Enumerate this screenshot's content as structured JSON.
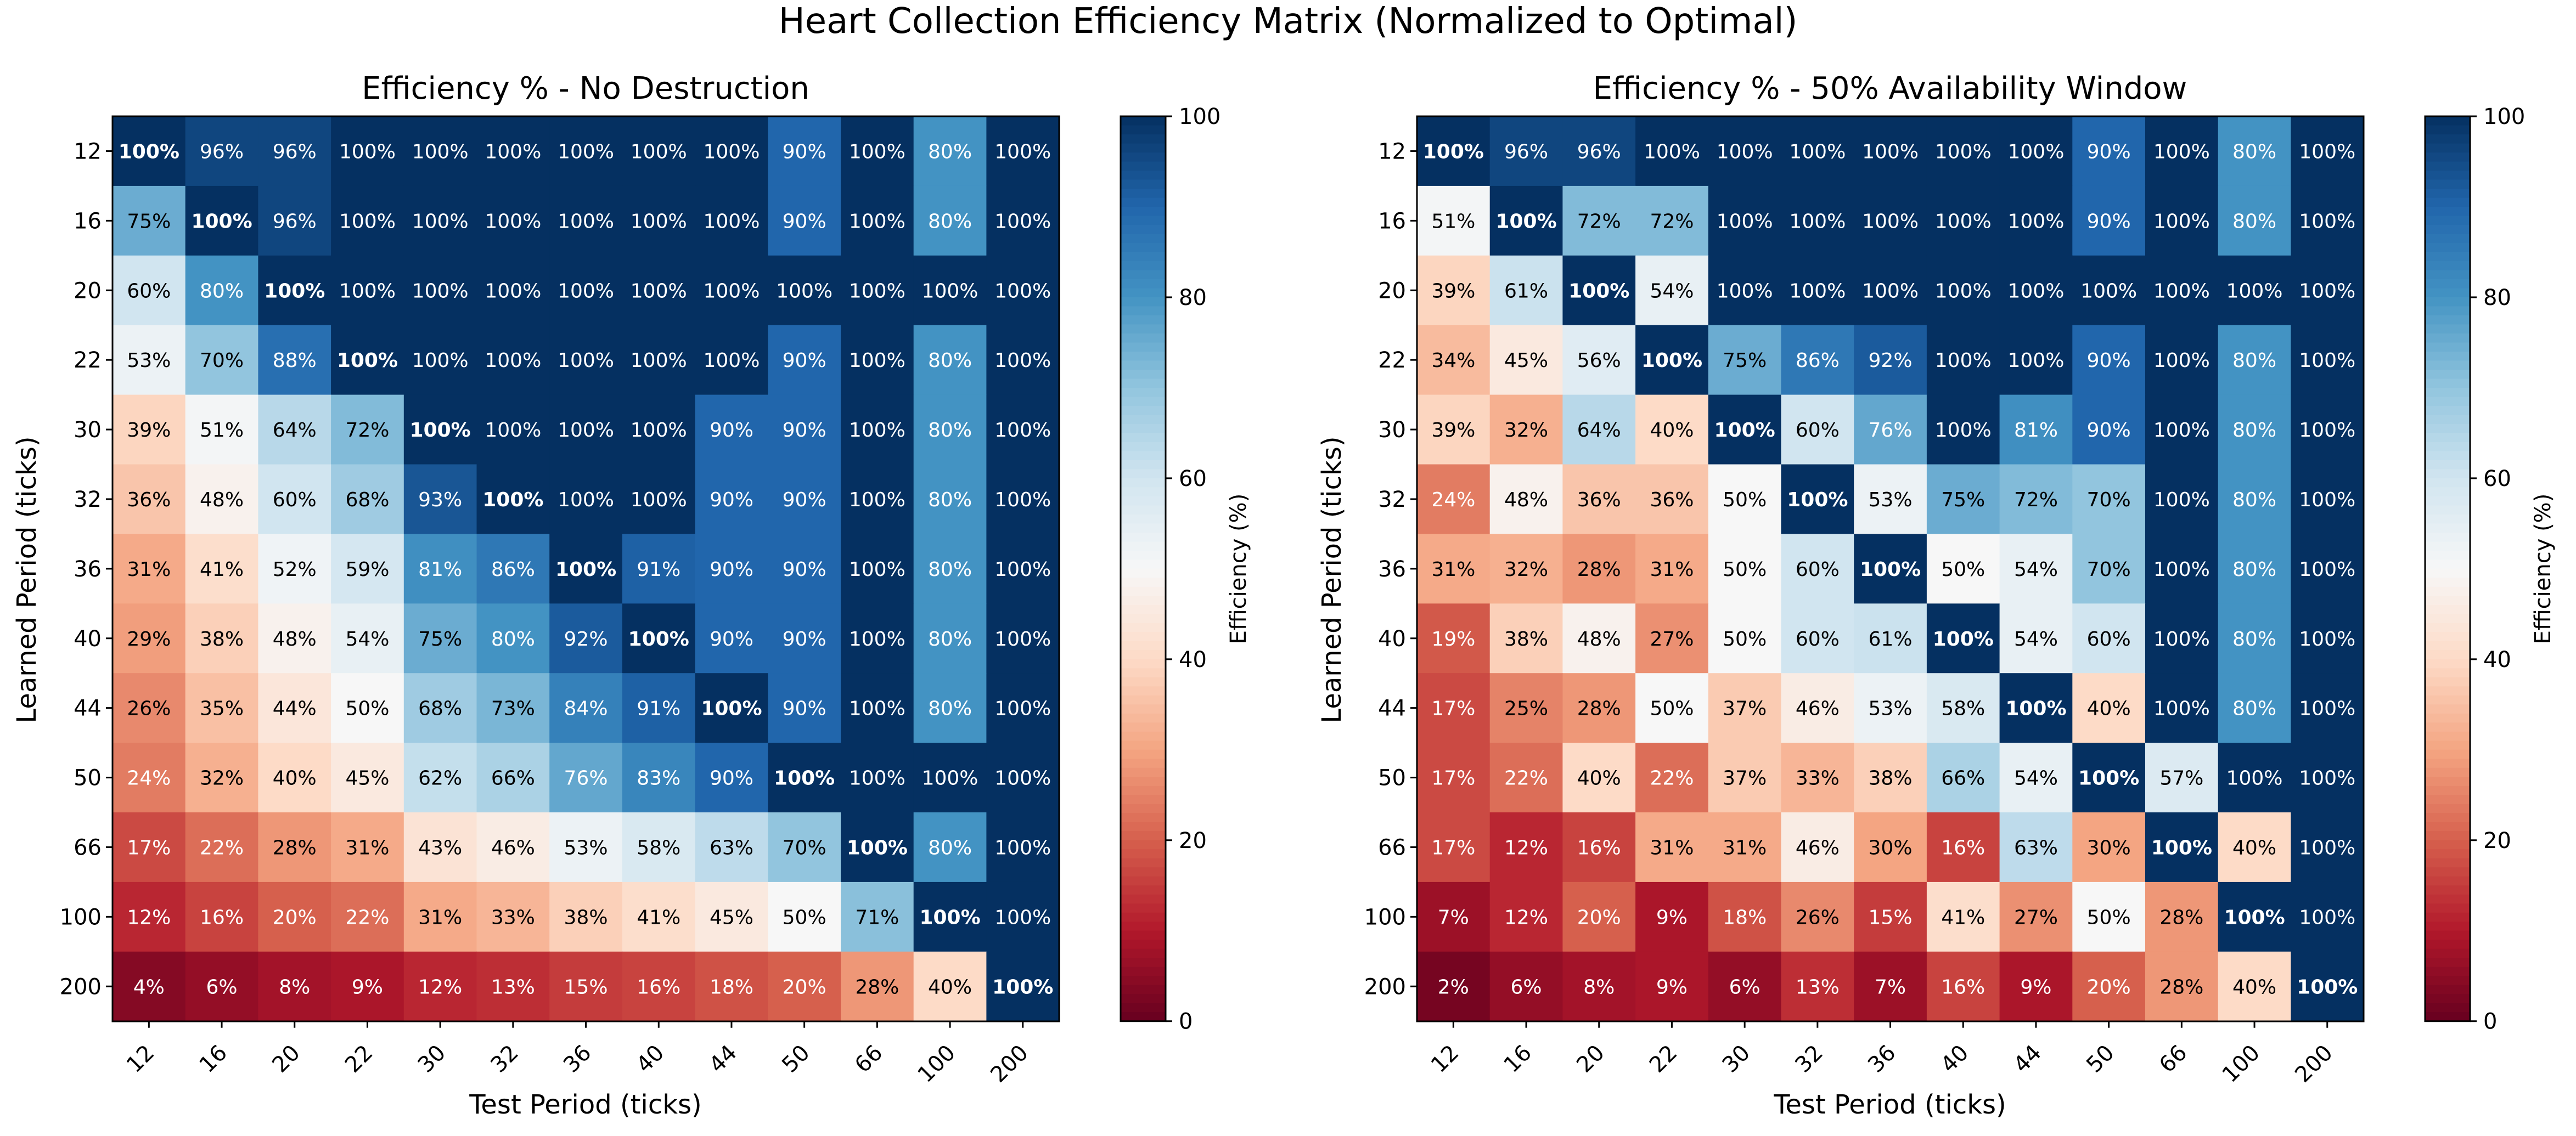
{
  "suptitle": "Heart Collection Efficiency Matrix (Normalized to Optimal)",
  "chart_data": [
    {
      "type": "heatmap",
      "title": "Efficiency % - No Destruction",
      "xlabel": "Test Period (ticks)",
      "ylabel": "Learned Period (ticks)",
      "x_categories": [
        "12",
        "16",
        "20",
        "22",
        "30",
        "32",
        "36",
        "40",
        "44",
        "50",
        "66",
        "100",
        "200"
      ],
      "y_categories": [
        "12",
        "16",
        "20",
        "22",
        "30",
        "32",
        "36",
        "40",
        "44",
        "50",
        "66",
        "100",
        "200"
      ],
      "value_format": "percent",
      "values": [
        [
          100,
          96,
          96,
          100,
          100,
          100,
          100,
          100,
          100,
          90,
          100,
          80,
          100
        ],
        [
          75,
          100,
          96,
          100,
          100,
          100,
          100,
          100,
          100,
          90,
          100,
          80,
          100
        ],
        [
          60,
          80,
          100,
          100,
          100,
          100,
          100,
          100,
          100,
          100,
          100,
          100,
          100
        ],
        [
          53,
          70,
          88,
          100,
          100,
          100,
          100,
          100,
          100,
          90,
          100,
          80,
          100
        ],
        [
          39,
          51,
          64,
          72,
          100,
          100,
          100,
          100,
          90,
          90,
          100,
          80,
          100
        ],
        [
          36,
          48,
          60,
          68,
          93,
          100,
          100,
          100,
          90,
          90,
          100,
          80,
          100
        ],
        [
          31,
          41,
          52,
          59,
          81,
          86,
          100,
          91,
          90,
          90,
          100,
          80,
          100
        ],
        [
          29,
          38,
          48,
          54,
          75,
          80,
          92,
          100,
          90,
          90,
          100,
          80,
          100
        ],
        [
          26,
          35,
          44,
          50,
          68,
          73,
          84,
          91,
          100,
          90,
          100,
          80,
          100
        ],
        [
          24,
          32,
          40,
          45,
          62,
          66,
          76,
          83,
          90,
          100,
          100,
          100,
          100
        ],
        [
          17,
          22,
          28,
          31,
          43,
          46,
          53,
          58,
          63,
          70,
          100,
          80,
          100
        ],
        [
          12,
          16,
          20,
          22,
          31,
          33,
          38,
          41,
          45,
          50,
          71,
          100,
          100
        ],
        [
          4,
          6,
          8,
          9,
          12,
          13,
          15,
          16,
          18,
          20,
          28,
          40,
          100
        ]
      ],
      "colorbar": {
        "label": "Efficiency (%)",
        "range": [
          0,
          100
        ],
        "ticks": [
          "0",
          "20",
          "40",
          "60",
          "80",
          "100"
        ],
        "colormap": "RdBu"
      }
    },
    {
      "type": "heatmap",
      "title": "Efficiency % - 50% Availability Window",
      "xlabel": "Test Period (ticks)",
      "ylabel": "Learned Period (ticks)",
      "x_categories": [
        "12",
        "16",
        "20",
        "22",
        "30",
        "32",
        "36",
        "40",
        "44",
        "50",
        "66",
        "100",
        "200"
      ],
      "y_categories": [
        "12",
        "16",
        "20",
        "22",
        "30",
        "32",
        "36",
        "40",
        "44",
        "50",
        "66",
        "100",
        "200"
      ],
      "value_format": "percent",
      "values": [
        [
          100,
          96,
          96,
          100,
          100,
          100,
          100,
          100,
          100,
          90,
          100,
          80,
          100
        ],
        [
          51,
          100,
          72,
          72,
          100,
          100,
          100,
          100,
          100,
          90,
          100,
          80,
          100
        ],
        [
          39,
          61,
          100,
          54,
          100,
          100,
          100,
          100,
          100,
          100,
          100,
          100,
          100
        ],
        [
          34,
          45,
          56,
          100,
          75,
          86,
          92,
          100,
          100,
          90,
          100,
          80,
          100
        ],
        [
          39,
          32,
          64,
          40,
          100,
          60,
          76,
          100,
          81,
          90,
          100,
          80,
          100
        ],
        [
          24,
          48,
          36,
          36,
          50,
          100,
          53,
          75,
          72,
          70,
          100,
          80,
          100
        ],
        [
          31,
          32,
          28,
          31,
          50,
          60,
          100,
          50,
          54,
          70,
          100,
          80,
          100
        ],
        [
          19,
          38,
          48,
          27,
          50,
          60,
          61,
          100,
          54,
          60,
          100,
          80,
          100
        ],
        [
          17,
          25,
          28,
          50,
          37,
          46,
          53,
          58,
          100,
          40,
          100,
          80,
          100
        ],
        [
          17,
          22,
          40,
          22,
          37,
          33,
          38,
          66,
          54,
          100,
          57,
          100,
          100
        ],
        [
          17,
          12,
          16,
          31,
          31,
          46,
          30,
          16,
          63,
          30,
          100,
          40,
          100
        ],
        [
          7,
          12,
          20,
          9,
          18,
          26,
          15,
          41,
          27,
          50,
          28,
          100,
          100
        ],
        [
          2,
          6,
          8,
          9,
          6,
          13,
          7,
          16,
          9,
          20,
          28,
          40,
          100
        ]
      ],
      "colorbar": {
        "label": "Efficiency (%)",
        "range": [
          0,
          100
        ],
        "ticks": [
          "0",
          "20",
          "40",
          "60",
          "80",
          "100"
        ],
        "colormap": "RdBu"
      }
    }
  ]
}
